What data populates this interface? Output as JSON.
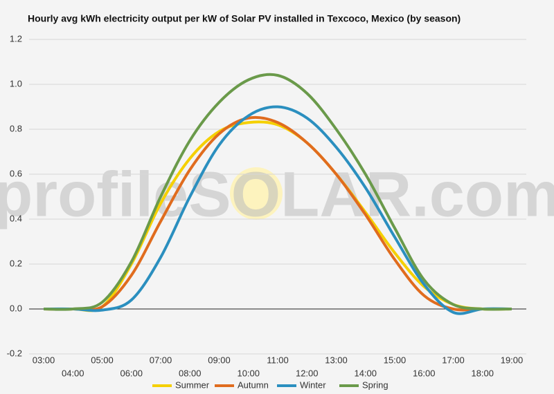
{
  "chart_data": {
    "type": "line",
    "title": "Hourly avg kWh electricity output per kW of Solar PV installed in Texcoco, Mexico (by season)",
    "watermark": "profileSOLAR.com",
    "categories": [
      "03:00",
      "04:00",
      "05:00",
      "06:00",
      "07:00",
      "08:00",
      "09:00",
      "10:00",
      "11:00",
      "12:00",
      "13:00",
      "14:00",
      "15:00",
      "16:00",
      "17:00",
      "18:00",
      "19:00"
    ],
    "series": [
      {
        "name": "Summer",
        "color": "#f5d000",
        "values": [
          0,
          0,
          0.01,
          0.2,
          0.47,
          0.67,
          0.79,
          0.83,
          0.82,
          0.74,
          0.6,
          0.43,
          0.25,
          0.1,
          0.02,
          0,
          0
        ]
      },
      {
        "name": "Autumn",
        "color": "#e06c1e",
        "values": [
          0,
          0,
          0.01,
          0.15,
          0.39,
          0.62,
          0.78,
          0.85,
          0.83,
          0.74,
          0.6,
          0.42,
          0.22,
          0.06,
          0,
          0,
          0
        ]
      },
      {
        "name": "Winter",
        "color": "#2b8fbf",
        "values": [
          0,
          0,
          -0.005,
          0.04,
          0.23,
          0.5,
          0.73,
          0.86,
          0.9,
          0.85,
          0.72,
          0.54,
          0.32,
          0.11,
          -0.015,
          0,
          0
        ]
      },
      {
        "name": "Spring",
        "color": "#6a9a4a",
        "values": [
          0,
          0,
          0.03,
          0.21,
          0.5,
          0.75,
          0.92,
          1.02,
          1.04,
          0.96,
          0.8,
          0.6,
          0.36,
          0.13,
          0.02,
          0,
          0
        ]
      }
    ],
    "ylim": [
      -0.2,
      1.2
    ],
    "yticks": [
      -0.2,
      {
        "value": 0,
        "label": "0.0"
      },
      0.2,
      0.4,
      0.6,
      0.8,
      {
        "value": 1,
        "label": "1.0"
      },
      1.2
    ],
    "grid": true,
    "legend": "bottom"
  }
}
